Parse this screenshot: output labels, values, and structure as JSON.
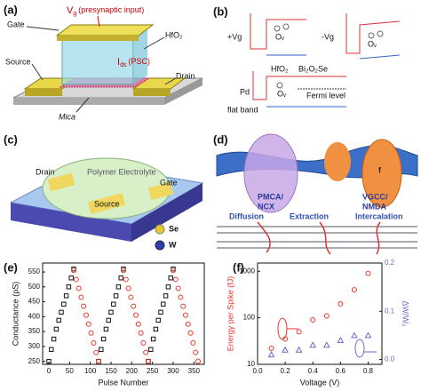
{
  "panels": {
    "a": {
      "panel_label": "(a)",
      "gate": "Gate",
      "vg": {
        "symbol": "V",
        "sub": "g",
        "text": "(presynaptic input)"
      },
      "oxide": "HfO₂",
      "ids": {
        "symbol": "I",
        "sub": "ds",
        "text": "(PSC)"
      },
      "source": "Source",
      "drain": "Drain",
      "substrate": "Mica"
    },
    "b": {
      "panel_label": "(b)",
      "positive_bias": "+Vg",
      "negative_bias": "-Vg",
      "vacancy": "Oᵥ",
      "oxide": "HfO₂",
      "channel": "Bi₂O₂Se",
      "contact": "Pd",
      "fermi": "Fermi level",
      "flat": "flat band"
    },
    "c": {
      "panel_label": "(c)",
      "drain": "Drain",
      "electrolyte": "Polymer Electrolyte",
      "gate": "Gate",
      "source": "Source",
      "legend": [
        "Se",
        "W"
      ]
    },
    "d": {
      "panel_label": "(d)",
      "pump": [
        "PMCA/",
        "NCX"
      ],
      "channel": [
        "VGCC/",
        "NMDA"
      ],
      "channel_mark": "f",
      "steps": [
        "Diffusion",
        "Extraction",
        "Intercalation"
      ]
    }
  },
  "chart_data": [
    {
      "type": "scatter",
      "panel_label": "(e)",
      "xlabel": "Pulse Number",
      "ylabel": "Conductance (pS)",
      "xlim": [
        -15,
        375
      ],
      "ylim": [
        240,
        580
      ],
      "xticks": [
        0,
        50,
        100,
        150,
        200,
        250,
        300,
        350
      ],
      "yticks": [
        250,
        300,
        350,
        400,
        450,
        500,
        550
      ],
      "series": [
        {
          "color": "#111111",
          "marker": "square",
          "x": [
            0,
            6,
            12,
            18,
            24,
            30,
            36,
            42,
            48,
            54,
            60,
            120,
            126,
            132,
            138,
            144,
            150,
            156,
            162,
            168,
            174,
            180,
            240,
            246,
            252,
            258,
            264,
            270,
            276,
            282,
            288,
            294,
            300
          ],
          "values": [
            250,
            290,
            325,
            358,
            388,
            415,
            442,
            470,
            500,
            530,
            560,
            250,
            290,
            325,
            358,
            388,
            415,
            442,
            470,
            500,
            530,
            560,
            250,
            290,
            325,
            358,
            388,
            415,
            442,
            470,
            500,
            530,
            560
          ]
        },
        {
          "color": "#e8372c",
          "marker": "circle",
          "x": [
            60,
            66,
            72,
            78,
            84,
            90,
            96,
            102,
            108,
            114,
            120,
            180,
            186,
            192,
            198,
            204,
            210,
            216,
            222,
            228,
            234,
            240,
            300,
            306,
            312,
            318,
            324,
            330,
            336,
            342,
            348,
            354,
            360
          ],
          "values": [
            555,
            525,
            495,
            465,
            435,
            405,
            375,
            345,
            312,
            280,
            250,
            555,
            525,
            495,
            465,
            435,
            405,
            375,
            345,
            312,
            280,
            250,
            555,
            525,
            495,
            465,
            435,
            405,
            375,
            345,
            312,
            280,
            250
          ]
        }
      ]
    },
    {
      "type": "scatter",
      "panel_label": "(f)",
      "xlabel": "Voltage (V)",
      "ylabel": "Energy per Spike (fJ)",
      "ylabel_color": "#e8372c",
      "y2label": "ΔW/W₀",
      "y2label_color": "#6a6acd",
      "log_y": true,
      "xlim": [
        0,
        0.9
      ],
      "ylim": [
        10,
        1500
      ],
      "xticks": [
        {
          "value": 0,
          "label": "0.0"
        },
        0.2,
        0.4,
        0.6,
        0.8
      ],
      "yticks": [
        10,
        100,
        1000
      ],
      "y2lim": [
        -0.01,
        0.2
      ],
      "y2ticks": [
        {
          "value": 0,
          "label": "0.0"
        },
        0.1,
        0.2
      ],
      "series": [
        {
          "color": "#e8372c",
          "marker": "circle",
          "x": [
            0.1,
            0.2,
            0.3,
            0.4,
            0.5,
            0.6,
            0.7,
            0.8
          ],
          "values": [
            22,
            35,
            50,
            90,
            110,
            200,
            400,
            900
          ]
        },
        {
          "color": "#6a6acd",
          "marker": "triangle",
          "axis": "y2",
          "x": [
            0.1,
            0.2,
            0.3,
            0.4,
            0.5,
            0.6,
            0.7,
            0.8
          ],
          "values": [
            0.01,
            0.02,
            0.02,
            0.03,
            0.03,
            0.04,
            0.05,
            0.05
          ]
        }
      ]
    }
  ]
}
